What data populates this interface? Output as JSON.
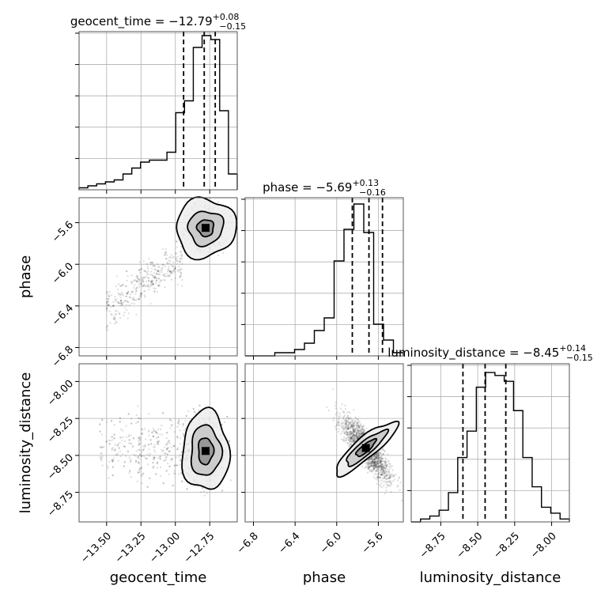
{
  "chart_data": {
    "type": "corner",
    "parameters": [
      "geocent_time",
      "phase",
      "luminosity_distance"
    ],
    "axis_labels": {
      "x": [
        "geocent_time",
        "phase",
        "luminosity_distance"
      ],
      "y": [
        "",
        "phase",
        "luminosity_distance"
      ]
    },
    "titles": [
      {
        "name": "geocent_time",
        "median": -12.79,
        "plus": 0.08,
        "minus": 0.15,
        "prefix": "geocent_time = −12.79",
        "sup": "+0.08",
        "sub": "−0.15"
      },
      {
        "name": "phase",
        "median": -5.69,
        "plus": 0.13,
        "minus": 0.16,
        "prefix": "phase = −5.69",
        "sup": "+0.13",
        "sub": "−0.16"
      },
      {
        "name": "luminosity_distance",
        "median": -8.45,
        "plus": 0.14,
        "minus": 0.15,
        "prefix": "luminosity_distance = −8.45",
        "sup": "+0.14",
        "sub": "−0.15"
      }
    ],
    "ranges": {
      "geocent_time": [
        -13.7,
        -12.55
      ],
      "phase": [
        -6.88,
        -5.36
      ],
      "luminosity_distance": [
        -8.95,
        -7.88
      ]
    },
    "ticks": {
      "geocent_time": [
        -13.5,
        -13.25,
        -13.0,
        -12.75
      ],
      "phase": [
        -6.8,
        -6.4,
        -6.0,
        -5.6
      ],
      "luminosity_distance": [
        -8.75,
        -8.5,
        -8.25,
        -8.0
      ]
    },
    "tick_labels": {
      "geocent_time": [
        "−13.50",
        "−13.25",
        "−13.00",
        "−12.75"
      ],
      "phase": [
        "−6.8",
        "−6.4",
        "−6.0",
        "−5.6"
      ],
      "luminosity_distance": [
        "−8.75",
        "−8.50",
        "−8.25",
        "−8.00"
      ]
    },
    "quantiles": {
      "geocent_time": [
        -12.94,
        -12.79,
        -12.71
      ],
      "phase": [
        -5.85,
        -5.69,
        -5.56
      ],
      "luminosity_distance": [
        -8.6,
        -8.45,
        -8.31
      ]
    },
    "histograms": {
      "geocent_time": [
        1,
        2,
        3,
        4,
        5,
        8,
        11,
        14,
        15,
        15,
        19,
        39,
        45,
        72,
        78,
        76,
        40,
        8
      ],
      "phase": [
        0,
        0,
        0,
        1,
        1,
        2,
        4,
        8,
        12,
        30,
        40,
        48,
        39,
        10,
        5,
        1
      ],
      "luminosity_distance": [
        0,
        1,
        2,
        4,
        10,
        22,
        31,
        46,
        51,
        50,
        48,
        38,
        22,
        12,
        5,
        3,
        1
      ]
    },
    "hist_max": {
      "geocent_time": 80,
      "phase": 50,
      "luminosity_distance": 54
    },
    "y_ticks_hist": 5,
    "grid": true
  }
}
